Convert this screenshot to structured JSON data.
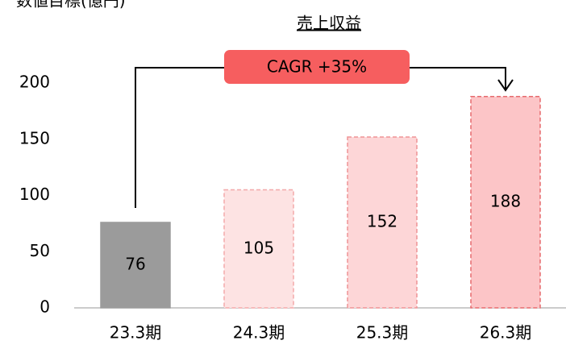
{
  "chart_data": {
    "type": "bar",
    "subtitle": "数値目標(億円)",
    "title": "売上収益",
    "categories": [
      "23.3期",
      "24.3期",
      "25.3期",
      "26.3期"
    ],
    "values": [
      76,
      105,
      152,
      188
    ],
    "colors": [
      "#9b9b9b",
      "#fde3e3",
      "#fdd6d7",
      "#fcc5c7"
    ],
    "border_colors": [
      "#9b9b9b",
      "#f3a9aa",
      "#ef9496",
      "#e66b6e"
    ],
    "label_colors": [
      "#ffffff",
      "#000000",
      "#000000",
      "#000000"
    ],
    "ylim": [
      0,
      200
    ],
    "yticks": [
      0,
      50,
      100,
      150,
      200
    ],
    "grid": false,
    "annotation": {
      "text": "CAGR +35%",
      "color": "#f65e5f"
    }
  }
}
